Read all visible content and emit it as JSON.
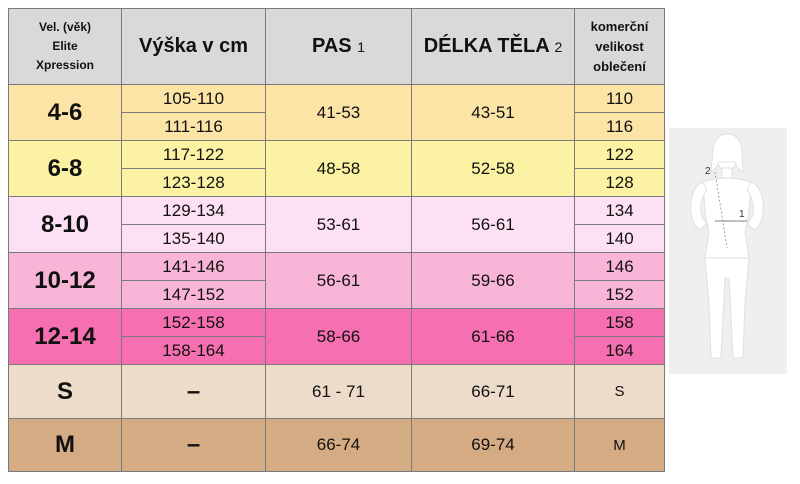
{
  "headers": {
    "vel_line1": "Vel. (věk)",
    "vel_line2": "Elite",
    "vel_line3": "Xpression",
    "vyska": "Výška v cm",
    "pas": "PAS",
    "pas_sub": "1",
    "delka": "DÉLKA TĚLA",
    "delka_sub": "2",
    "kom_line1": "komerční",
    "kom_line2": "velikost",
    "kom_line3": "oblečení"
  },
  "rows": [
    {
      "size": "4-6",
      "heights": [
        "105-110",
        "111-116"
      ],
      "pas": "41-53",
      "delka": "43-51",
      "kom": [
        "110",
        "116"
      ],
      "color": "#fce4a6"
    },
    {
      "size": "6-8",
      "heights": [
        "117-122",
        "123-128"
      ],
      "pas": "48-58",
      "delka": "52-58",
      "kom": [
        "122",
        "128"
      ],
      "color": "#fbf3a3"
    },
    {
      "size": "8-10",
      "heights": [
        "129-134",
        "135-140"
      ],
      "pas": "53-61",
      "delka": "56-61",
      "kom": [
        "134",
        "140"
      ],
      "color": "#fde0f3"
    },
    {
      "size": "10-12",
      "heights": [
        "141-146",
        "147-152"
      ],
      "pas": "56-61",
      "delka": "59-66",
      "kom": [
        "146",
        "152"
      ],
      "color": "#f9b5d7"
    },
    {
      "size": "12-14",
      "heights": [
        "152-158",
        "158-164"
      ],
      "pas": "58-66",
      "delka": "61-66",
      "kom": [
        "158",
        "164"
      ],
      "color": "#f66fb0"
    },
    {
      "size": "S",
      "height": "–",
      "pas": "61 - 71",
      "delka": "66-71",
      "kom": "S",
      "color": "#ecdcc9"
    },
    {
      "size": "M",
      "height": "–",
      "pas": "66-74",
      "delka": "69-74",
      "kom": "M",
      "color": "#d5ab84"
    }
  ],
  "figure": {
    "label_waist": "1",
    "label_length": "2"
  }
}
